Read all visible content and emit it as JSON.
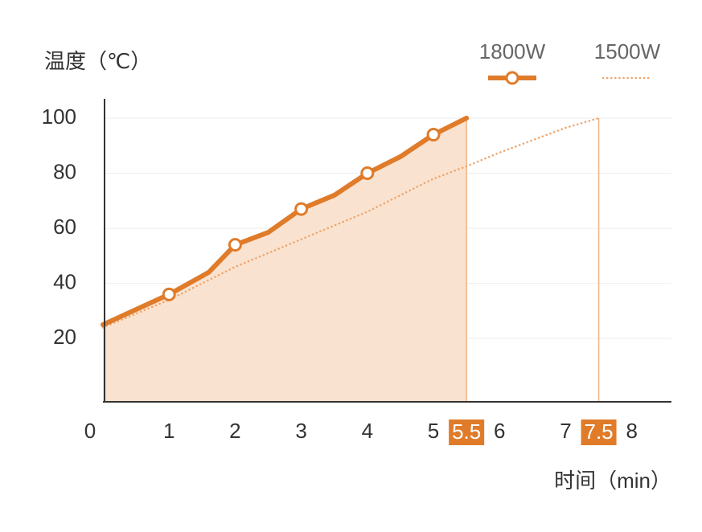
{
  "chart_data": {
    "type": "line",
    "y_label": "温度（℃）",
    "x_label": "时间（min）",
    "xlim": [
      0,
      8.6
    ],
    "ylim": [
      -3,
      107
    ],
    "xticks": [
      0,
      1,
      2,
      3,
      4,
      5,
      6,
      7,
      8
    ],
    "highlight_xticks": [
      5.5,
      7.5
    ],
    "yticks": [
      20,
      40,
      60,
      80,
      100
    ],
    "grid": true,
    "legend": "top-right",
    "series": [
      {
        "name": "1800W",
        "color": "#e07b2a",
        "style": "solid",
        "fill": "#f9e3d0",
        "x": [
          0,
          1,
          1.6,
          2,
          2.5,
          3,
          3.5,
          4,
          4.5,
          5,
          5.5
        ],
        "values": [
          25,
          36,
          44,
          54,
          58.5,
          67,
          72,
          80,
          86,
          94,
          100
        ]
      },
      {
        "name": "1500W",
        "color": "#f0a36a",
        "style": "dotted",
        "x": [
          0,
          1,
          2,
          3,
          4,
          5,
          5.5,
          6,
          7,
          7.5
        ],
        "values": [
          24,
          34,
          46,
          56,
          66,
          78,
          82.5,
          87.5,
          96.5,
          100
        ]
      }
    ]
  }
}
